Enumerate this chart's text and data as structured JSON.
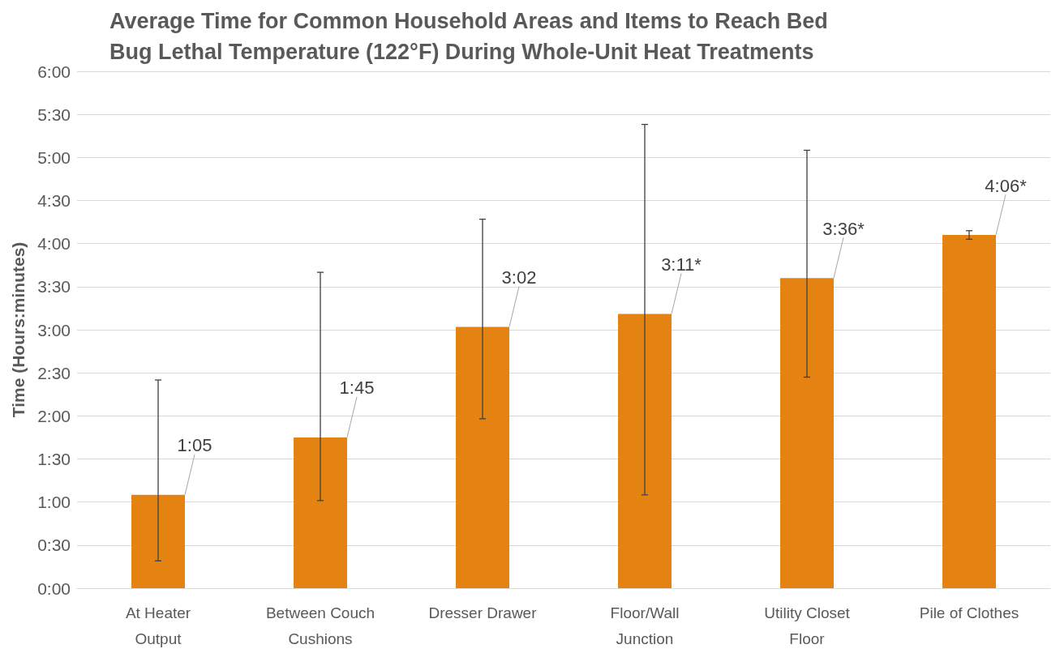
{
  "chart_data": {
    "type": "bar",
    "title": "Average Time for Common Household Areas and Items to Reach Bed\nBug Lethal Temperature (122°F) During Whole-Unit Heat Treatments",
    "ylabel": "Time (Hours:minutes)",
    "categories": [
      "At Heater\nOutput",
      "Between Couch\nCushions",
      "Dresser Drawer",
      "Floor/Wall\nJunction",
      "Utility Closet\nFloor",
      "Pile of Clothes"
    ],
    "values": [
      65,
      105,
      182,
      191,
      216,
      246
    ],
    "value_labels": [
      "1:05",
      "1:45",
      "3:02",
      "3:11*",
      "3:36*",
      "4:06*"
    ],
    "errors": [
      [
        19,
        145
      ],
      [
        61,
        220
      ],
      [
        118,
        257
      ],
      [
        65,
        323
      ],
      [
        147,
        305
      ],
      [
        243,
        249
      ]
    ],
    "color": "#e48312",
    "ylim": [
      0,
      360
    ],
    "yticks": [
      {
        "value": 0,
        "label": "0:00"
      },
      {
        "value": 30,
        "label": "0:30"
      },
      {
        "value": 60,
        "label": "1:00"
      },
      {
        "value": 90,
        "label": "1:30"
      },
      {
        "value": 120,
        "label": "2:00"
      },
      {
        "value": 150,
        "label": "2:30"
      },
      {
        "value": 180,
        "label": "3:00"
      },
      {
        "value": 210,
        "label": "3:30"
      },
      {
        "value": 240,
        "label": "4:00"
      },
      {
        "value": 270,
        "label": "4:30"
      },
      {
        "value": 300,
        "label": "5:00"
      },
      {
        "value": 330,
        "label": "5:30"
      },
      {
        "value": 360,
        "label": "6:00"
      }
    ],
    "grid": "y"
  }
}
